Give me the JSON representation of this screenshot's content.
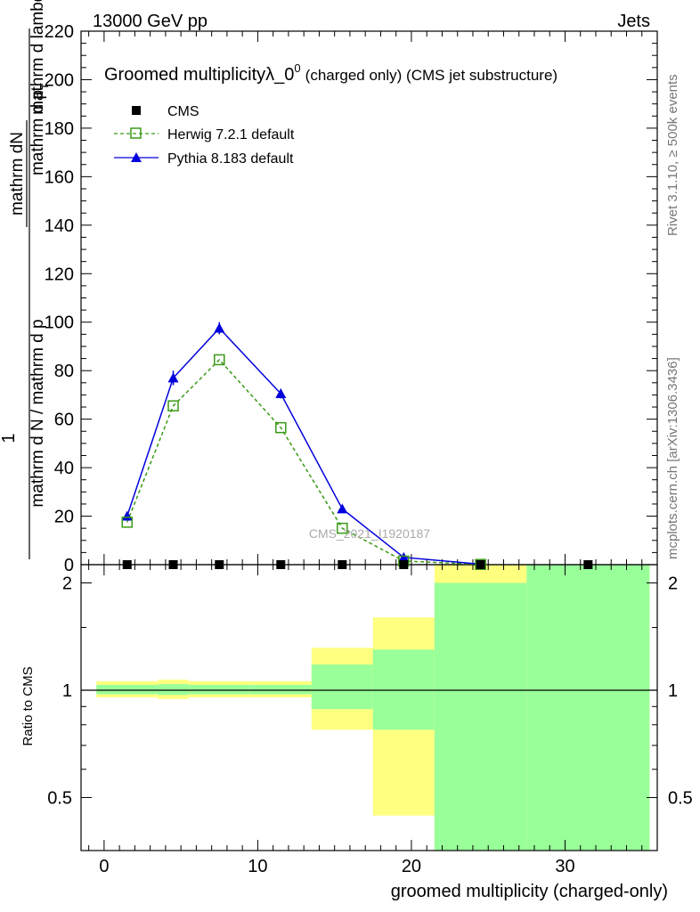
{
  "header": {
    "left": "13000 GeV pp",
    "right": "Jets"
  },
  "side_text": {
    "rivet": "Rivet 3.1.10, ≥ 500k events",
    "mcplots": "mcplots.cern.ch [arXiv:1306.3436]"
  },
  "watermark": "CMS_2021_I1920187",
  "colors": {
    "cms": "#000000",
    "herwig": "#3a9a16",
    "pythia": "#0000dd",
    "band_yellow": "#ffff80",
    "band_green": "#99ff99"
  },
  "chart_data": [
    {
      "type": "line",
      "title": "Groomed multiplicityλ_0",
      "title_sup": "0",
      "title_suffix": "(charged only) (CMS jet substructure)",
      "ylabel_top": "1",
      "ylabel_frac_num": "mathrm dN",
      "ylabel_frac_den": "mathrm d N / mathrm d p",
      "ylabel_frac_den2": "mathrm d p",
      "ylabel_sub": "T",
      "ylabel_frac_den3": "mathrm d lambda",
      "ylabel_rest": "mathrm d p_ mathrm d lambda",
      "ylim": [
        0,
        220
      ],
      "yticks": [
        "0",
        "20",
        "40",
        "60",
        "80",
        "100",
        "120",
        "140",
        "160",
        "180",
        "200",
        "220"
      ],
      "legend": {
        "placement": "top-left",
        "cms": "CMS",
        "herwig": "Herwig 7.2.1 default",
        "pythia": "Pythia 8.183 default"
      },
      "series": [
        {
          "name": "CMS",
          "x": [
            1.5,
            4.5,
            7.5,
            11.5,
            15.5,
            19.5,
            24.5,
            31.5
          ],
          "values": [
            0,
            0,
            0,
            0,
            0,
            0,
            0,
            0
          ]
        },
        {
          "name": "Herwig 7.2.1 default",
          "x": [
            1.5,
            4.5,
            7.5,
            11.5,
            15.5,
            19.5,
            24.5
          ],
          "values": [
            17.5,
            65.5,
            84.5,
            56.5,
            15,
            1.5,
            0.1
          ]
        },
        {
          "name": "Pythia 8.183 default",
          "x": [
            1.5,
            4.5,
            7.5,
            11.5,
            15.5,
            19.5,
            24.5
          ],
          "values": [
            20,
            77,
            97.5,
            70.5,
            23,
            3,
            0.2
          ],
          "errors": [
            1,
            3,
            2.5,
            2,
            1,
            0.5,
            0.1
          ]
        }
      ]
    },
    {
      "type": "area",
      "ylabel": "Ratio to CMS",
      "xlabel": "groomed multiplicity (charged-only)",
      "xlim": [
        -1.5,
        36
      ],
      "xticks": [
        "0",
        "10",
        "20",
        "30"
      ],
      "yticks": [
        "0.5",
        "1",
        "2"
      ],
      "ylim": [
        0.355,
        2.25
      ],
      "bands": [
        {
          "x0": -0.5,
          "x1": 3.5,
          "yellow": [
            0.955,
            1.06
          ],
          "green": [
            0.975,
            1.035
          ]
        },
        {
          "x0": 3.5,
          "x1": 5.5,
          "yellow": [
            0.945,
            1.07
          ],
          "green": [
            0.97,
            1.04
          ]
        },
        {
          "x0": 5.5,
          "x1": 9.5,
          "yellow": [
            0.955,
            1.06
          ],
          "green": [
            0.975,
            1.035
          ]
        },
        {
          "x0": 9.5,
          "x1": 13.5,
          "yellow": [
            0.955,
            1.06
          ],
          "green": [
            0.975,
            1.035
          ]
        },
        {
          "x0": 13.5,
          "x1": 17.5,
          "yellow": [
            0.775,
            1.315
          ],
          "green": [
            0.885,
            1.18
          ]
        },
        {
          "x0": 17.5,
          "x1": 21.5,
          "yellow": [
            0.445,
            1.6
          ],
          "green": [
            0.775,
            1.3
          ]
        },
        {
          "x0": 21.5,
          "x1": 27.5,
          "yellow": [
            0.355,
            2.25
          ],
          "green": [
            0.355,
            2.0
          ]
        },
        {
          "x0": 27.5,
          "x1": 35.5,
          "yellow": [
            0.355,
            2.25
          ],
          "green": [
            0.355,
            2.25
          ]
        }
      ]
    }
  ]
}
